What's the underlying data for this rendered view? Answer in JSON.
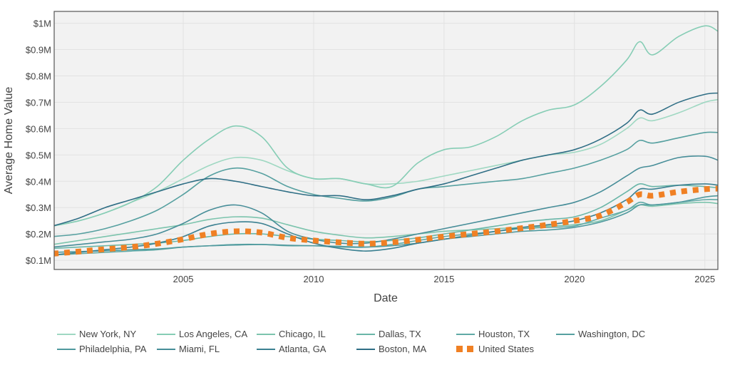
{
  "chart_data": {
    "type": "line",
    "title": "",
    "xlabel": "Date",
    "ylabel": "Average Home Value",
    "xlim": [
      2000.05,
      2025.5
    ],
    "ylim": [
      0.065,
      1.045
    ],
    "y_unit": "millions USD",
    "x_ticks": [
      2005,
      2010,
      2015,
      2020,
      2025
    ],
    "x_tick_labels": [
      "2005",
      "2010",
      "2015",
      "2020",
      "2025"
    ],
    "y_ticks": [
      0.1,
      0.2,
      0.3,
      0.4,
      0.5,
      0.6,
      0.7,
      0.8,
      0.9,
      1.0
    ],
    "y_tick_labels": [
      "$0.1M",
      "$0.2M",
      "$0.3M",
      "$0.4M",
      "$0.5M",
      "$0.6M",
      "$0.7M",
      "$0.8M",
      "$0.9M",
      "$1M"
    ],
    "grid": true,
    "legend_position": "bottom",
    "x": [
      2000,
      2001,
      2002,
      2003,
      2004,
      2005,
      2006,
      2007,
      2008,
      2009,
      2010,
      2011,
      2012,
      2013,
      2014,
      2015,
      2016,
      2017,
      2018,
      2019,
      2020,
      2021,
      2022,
      2022.5,
      2023,
      2024,
      2025,
      2025.5
    ],
    "series": [
      {
        "name": "New York, NY",
        "color": "#9fd8c2",
        "values": [
          0.23,
          0.25,
          0.28,
          0.32,
          0.36,
          0.41,
          0.46,
          0.49,
          0.48,
          0.44,
          0.41,
          0.41,
          0.39,
          0.39,
          0.4,
          0.42,
          0.44,
          0.46,
          0.48,
          0.5,
          0.51,
          0.54,
          0.6,
          0.64,
          0.63,
          0.66,
          0.7,
          0.71
        ]
      },
      {
        "name": "Los Angeles, CA",
        "color": "#86cdb5",
        "values": [
          0.23,
          0.25,
          0.28,
          0.32,
          0.38,
          0.48,
          0.56,
          0.61,
          0.57,
          0.45,
          0.41,
          0.41,
          0.39,
          0.38,
          0.47,
          0.52,
          0.53,
          0.57,
          0.63,
          0.67,
          0.69,
          0.76,
          0.86,
          0.93,
          0.88,
          0.95,
          0.99,
          0.97
        ]
      },
      {
        "name": "Chicago, IL",
        "color": "#7cc4ad",
        "values": [
          0.16,
          0.175,
          0.19,
          0.205,
          0.22,
          0.235,
          0.255,
          0.265,
          0.26,
          0.235,
          0.21,
          0.195,
          0.185,
          0.19,
          0.2,
          0.21,
          0.215,
          0.22,
          0.225,
          0.23,
          0.235,
          0.25,
          0.29,
          0.31,
          0.305,
          0.315,
          0.32,
          0.315
        ]
      },
      {
        "name": "Dallas, TX",
        "color": "#6ab6a8",
        "values": [
          0.145,
          0.15,
          0.155,
          0.16,
          0.165,
          0.175,
          0.19,
          0.2,
          0.2,
          0.19,
          0.18,
          0.175,
          0.17,
          0.175,
          0.185,
          0.2,
          0.215,
          0.23,
          0.245,
          0.255,
          0.265,
          0.3,
          0.36,
          0.39,
          0.38,
          0.385,
          0.38,
          0.375
        ]
      },
      {
        "name": "Houston, TX",
        "color": "#5fa9a6",
        "values": [
          0.12,
          0.125,
          0.13,
          0.135,
          0.14,
          0.15,
          0.155,
          0.16,
          0.16,
          0.155,
          0.155,
          0.15,
          0.15,
          0.16,
          0.175,
          0.19,
          0.2,
          0.21,
          0.22,
          0.225,
          0.23,
          0.26,
          0.29,
          0.32,
          0.31,
          0.32,
          0.33,
          0.33
        ]
      },
      {
        "name": "Washington, DC",
        "color": "#56a0a0",
        "values": [
          0.19,
          0.2,
          0.22,
          0.25,
          0.29,
          0.35,
          0.42,
          0.45,
          0.43,
          0.38,
          0.35,
          0.335,
          0.325,
          0.34,
          0.37,
          0.38,
          0.39,
          0.4,
          0.41,
          0.43,
          0.45,
          0.48,
          0.52,
          0.555,
          0.545,
          0.565,
          0.585,
          0.585
        ]
      },
      {
        "name": "Philadelphia, PA",
        "color": "#4f999e",
        "values": [
          0.13,
          0.133,
          0.136,
          0.14,
          0.143,
          0.15,
          0.155,
          0.158,
          0.16,
          0.157,
          0.155,
          0.153,
          0.15,
          0.155,
          0.165,
          0.18,
          0.19,
          0.2,
          0.21,
          0.215,
          0.225,
          0.245,
          0.28,
          0.31,
          0.31,
          0.32,
          0.34,
          0.345
        ]
      },
      {
        "name": "Miami, FL",
        "color": "#468d98",
        "values": [
          0.15,
          0.16,
          0.17,
          0.18,
          0.2,
          0.24,
          0.29,
          0.31,
          0.28,
          0.21,
          0.18,
          0.165,
          0.165,
          0.18,
          0.2,
          0.22,
          0.24,
          0.26,
          0.28,
          0.3,
          0.32,
          0.36,
          0.42,
          0.45,
          0.46,
          0.49,
          0.495,
          0.48
        ]
      },
      {
        "name": "Atlanta, GA",
        "color": "#3b8091",
        "values": [
          0.12,
          0.13,
          0.14,
          0.15,
          0.165,
          0.19,
          0.23,
          0.245,
          0.24,
          0.2,
          0.165,
          0.145,
          0.135,
          0.145,
          0.165,
          0.18,
          0.195,
          0.21,
          0.225,
          0.235,
          0.25,
          0.28,
          0.33,
          0.37,
          0.37,
          0.385,
          0.39,
          0.385
        ]
      },
      {
        "name": "Boston, MA",
        "color": "#2f6e85",
        "values": [
          0.23,
          0.26,
          0.3,
          0.33,
          0.36,
          0.39,
          0.41,
          0.4,
          0.38,
          0.36,
          0.345,
          0.345,
          0.33,
          0.345,
          0.37,
          0.39,
          0.42,
          0.45,
          0.48,
          0.5,
          0.52,
          0.56,
          0.62,
          0.67,
          0.655,
          0.7,
          0.73,
          0.735
        ]
      },
      {
        "name": "United States",
        "color": "#f08024",
        "dashed": true,
        "values": [
          0.125,
          0.133,
          0.142,
          0.15,
          0.163,
          0.18,
          0.2,
          0.21,
          0.205,
          0.185,
          0.175,
          0.168,
          0.163,
          0.168,
          0.178,
          0.19,
          0.2,
          0.21,
          0.222,
          0.235,
          0.25,
          0.27,
          0.32,
          0.35,
          0.345,
          0.36,
          0.37,
          0.372
        ]
      }
    ]
  }
}
